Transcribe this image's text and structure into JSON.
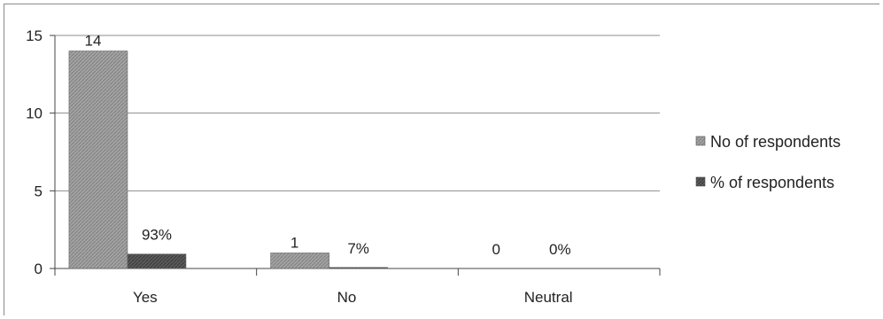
{
  "chart_data": {
    "type": "bar",
    "categories": [
      "Yes",
      "No",
      "Neutral"
    ],
    "series": [
      {
        "name": "No of respondents",
        "values": [
          14,
          1,
          0
        ],
        "labels": [
          "14",
          "1",
          "0"
        ],
        "color": "#9a9a9a"
      },
      {
        "name": "% of respondents",
        "values": [
          0.93,
          0.07,
          0
        ],
        "labels": [
          "93%",
          "7%",
          "0%"
        ],
        "color": "#555555"
      }
    ],
    "ylim": [
      0,
      15
    ],
    "yticks": [
      0,
      5,
      10,
      15
    ],
    "grid": true,
    "legend_position": "right"
  }
}
